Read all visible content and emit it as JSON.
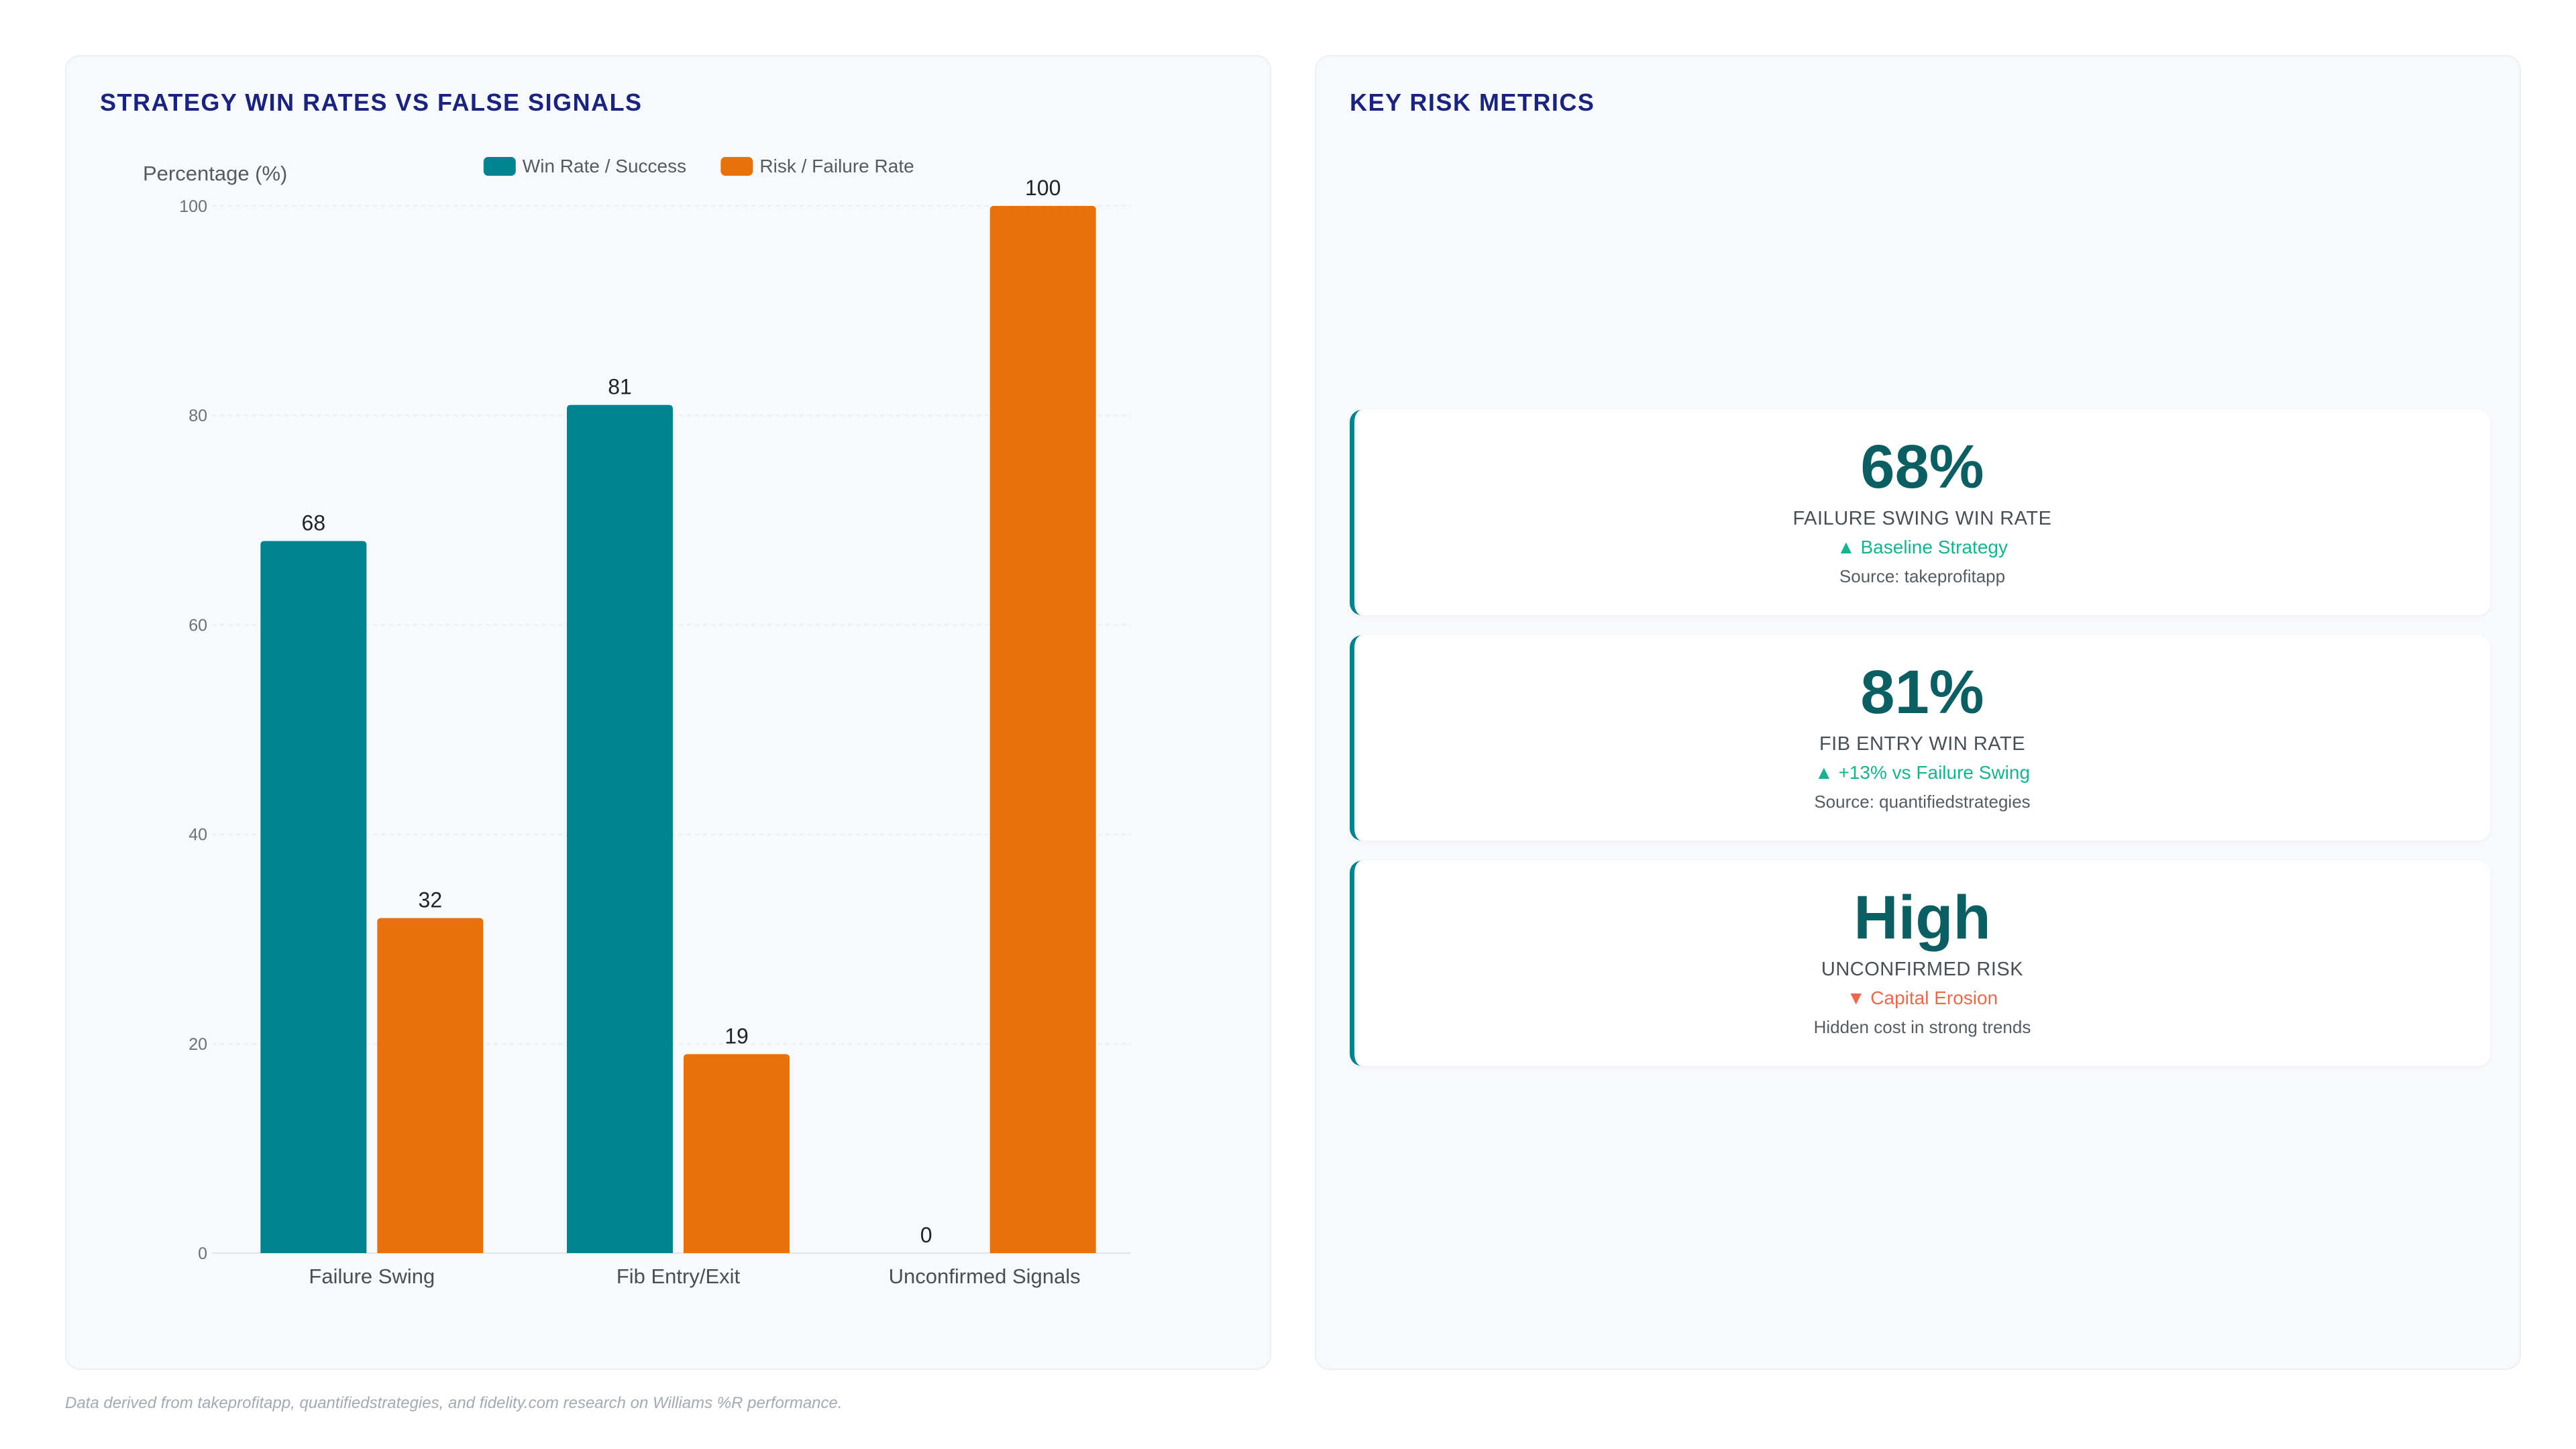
{
  "left_panel": {
    "title": "STRATEGY WIN RATES VS FALSE SIGNALS"
  },
  "chart_data": {
    "type": "bar",
    "categories": [
      "Failure Swing",
      "Fib Entry/Exit",
      "Unconfirmed Signals"
    ],
    "series": [
      {
        "name": "Win Rate / Success",
        "values": [
          68,
          81,
          0
        ],
        "color": "#00838f"
      },
      {
        "name": "Risk / Failure Rate",
        "values": [
          32,
          19,
          100
        ],
        "color": "#e8710a"
      }
    ],
    "ylabel": "Percentage (%)",
    "ylim": [
      0,
      100
    ],
    "yticks": [
      0,
      20,
      40,
      60,
      80,
      100
    ],
    "grid": true,
    "legend": "top-center",
    "data_labels": true
  },
  "right_panel": {
    "title": "KEY RISK METRICS",
    "cards": [
      {
        "value": "68%",
        "label": "FAILURE SWING WIN RATE",
        "trend": "▲ Baseline Strategy",
        "trend_dir": "up",
        "source": "Source: takeprofitapp"
      },
      {
        "value": "81%",
        "label": "FIB ENTRY WIN RATE",
        "trend": "▲ +13% vs Failure Swing",
        "trend_dir": "up",
        "source": "Source: quantifiedstrategies"
      },
      {
        "value": "High",
        "label": "UNCONFIRMED RISK",
        "trend": "▼ Capital Erosion",
        "trend_dir": "down",
        "source": "Hidden cost in strong trends"
      }
    ]
  },
  "footer": {
    "note": "Data derived from takeprofitapp, quantifiedstrategies, and fidelity.com research on Williams %R performance."
  },
  "colors": {
    "accent_teal": "#00838f",
    "accent_orange": "#e8710a",
    "title_navy": "#1a237e",
    "trend_up": "#17b28f",
    "trend_down": "#e86a4d"
  }
}
